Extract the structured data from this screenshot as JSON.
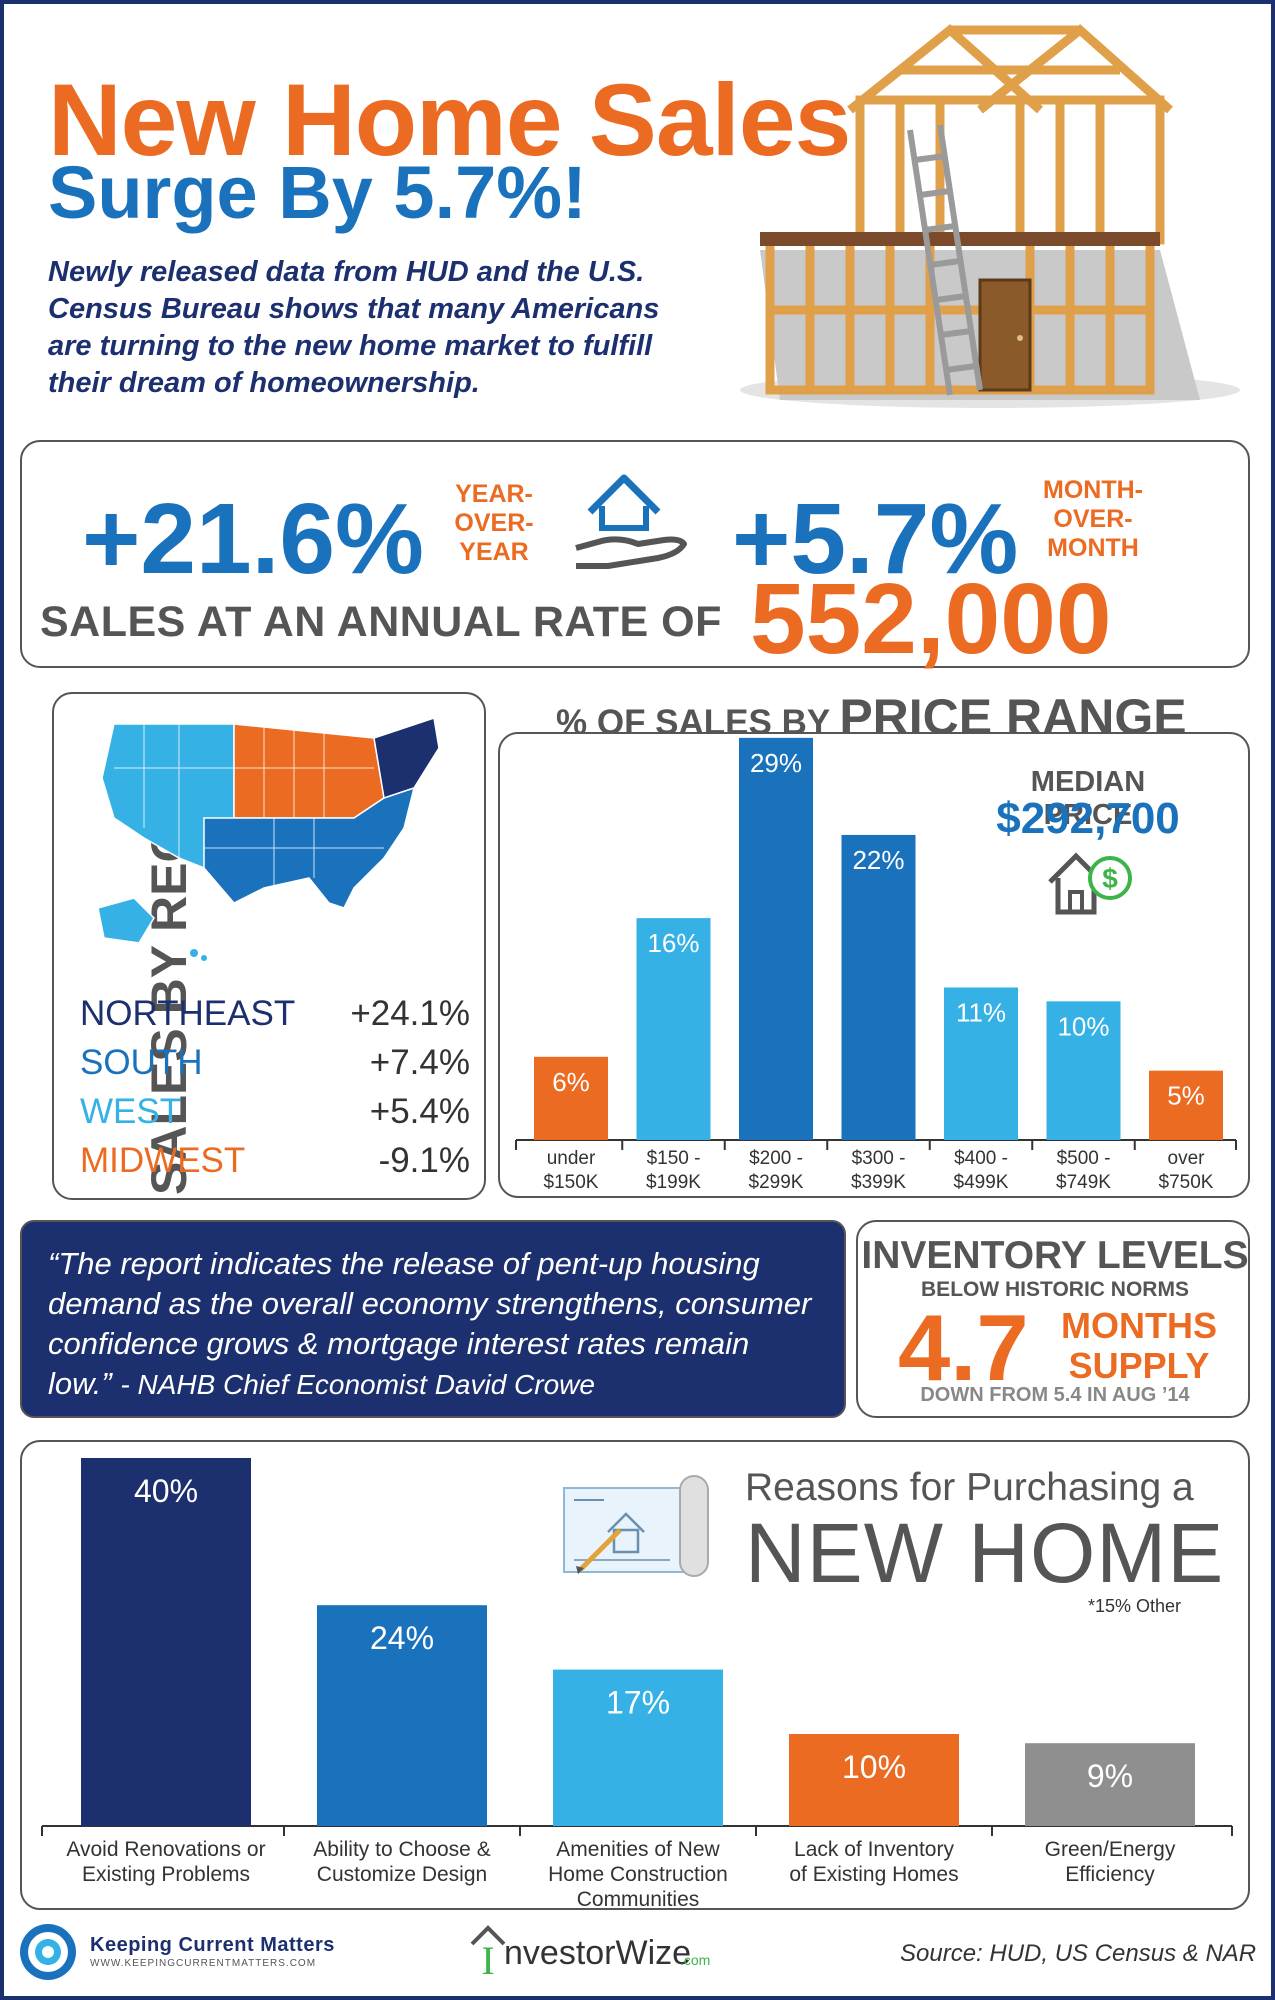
{
  "header": {
    "title_line1": "New Home Sales",
    "title_line2": "Surge By 5.7%!",
    "intro": "Newly released data from HUD and the U.S. Census Bureau shows that many Americans are turning to the new home market to fulfill their dream of homeownership."
  },
  "stats": {
    "yoy_value": "+21.6%",
    "yoy_label": [
      "YEAR-",
      "OVER-",
      "YEAR"
    ],
    "mom_value": "+5.7%",
    "mom_label": [
      "MONTH-",
      "OVER-",
      "MONTH"
    ],
    "annual_label": "SALES AT AN ANNUAL RATE OF",
    "annual_value": "552,000"
  },
  "regions": {
    "title": "SALES BY REGION",
    "items": [
      {
        "name": "NORTHEAST",
        "value": "+24.1%",
        "color": "#1c2f6e"
      },
      {
        "name": "SOUTH",
        "value": "+7.4%",
        "color": "#1a72bc"
      },
      {
        "name": "WEST",
        "value": "+5.4%",
        "color": "#35b1e5"
      },
      {
        "name": "MIDWEST",
        "value": "-9.1%",
        "color": "#ec6b23"
      }
    ]
  },
  "price_range": {
    "title_small": "% OF SALES BY",
    "title_big": "PRICE RANGE",
    "median_label": "MEDIAN PRICE",
    "median_value": "$292,700"
  },
  "quote": {
    "text": "“The report indicates the release of pent-up housing demand as the overall economy strengthens, consumer confidence grows & mortgage interest rates remain low.”",
    "attribution": "- NAHB Chief Economist David Crowe"
  },
  "inventory": {
    "title": "INVENTORY LEVELS",
    "subtitle": "BELOW HISTORIC NORMS",
    "value": "4.7",
    "unit_line1": "MONTHS",
    "unit_line2": "SUPPLY",
    "note": "DOWN FROM 5.4 IN AUG ’14"
  },
  "reasons": {
    "title_line1": "Reasons for Purchasing a",
    "title_line2": "NEW HOME",
    "other_note": "*15% Other"
  },
  "footer": {
    "kcm_name": "Keeping Current Matters",
    "kcm_url": "WWW.KEEPINGCURRENTMATTERS.COM",
    "iw_name": "nvestorWize",
    "iw_letter": "I",
    "iw_suffix": ".com",
    "source": "Source: HUD, US Census & NAR"
  },
  "colors": {
    "orange": "#ec6b23",
    "navy": "#1c2f6e",
    "blue": "#1a72bc",
    "light_blue": "#35b1e5",
    "gray": "#555555"
  },
  "icons": [
    "hand-house-icon",
    "house-dollar-icon",
    "blueprint-icon",
    "house-frame-illustration",
    "us-map-illustration"
  ],
  "chart_data": [
    {
      "type": "bar",
      "title": "% OF SALES BY PRICE RANGE",
      "categories": [
        [
          "under",
          "$150K"
        ],
        [
          "$150 -",
          "$199K"
        ],
        [
          "$200 -",
          "$299K"
        ],
        [
          "$300 -",
          "$399K"
        ],
        [
          "$400 -",
          "$499K"
        ],
        [
          "$500 -",
          "$749K"
        ],
        [
          "over",
          "$750K"
        ]
      ],
      "values": [
        6,
        16,
        29,
        22,
        11,
        10,
        5
      ],
      "value_labels": [
        "6%",
        "16%",
        "29%",
        "22%",
        "11%",
        "10%",
        "5%"
      ],
      "bar_colors": [
        "#ec6b23",
        "#35b1e5",
        "#1a72bc",
        "#1a72bc",
        "#35b1e5",
        "#35b1e5",
        "#ec6b23"
      ],
      "ylim": [
        0,
        30
      ]
    },
    {
      "type": "bar",
      "title": "Reasons for Purchasing a NEW HOME",
      "categories": [
        [
          "Avoid Renovations or",
          "Existing Problems"
        ],
        [
          "Ability to Choose &",
          "Customize Design"
        ],
        [
          "Amenities of New",
          "Home Construction",
          "Communities"
        ],
        [
          "Lack of Inventory",
          "of Existing Homes"
        ],
        [
          "Green/Energy",
          "Efficiency"
        ]
      ],
      "values": [
        40,
        24,
        17,
        10,
        9
      ],
      "value_labels": [
        "40%",
        "24%",
        "17%",
        "10%",
        "9%"
      ],
      "bar_colors": [
        "#1c2f6e",
        "#1a72bc",
        "#35b1e5",
        "#ec6b23",
        "#8f8f8f"
      ],
      "ylim": [
        0,
        40
      ]
    }
  ]
}
